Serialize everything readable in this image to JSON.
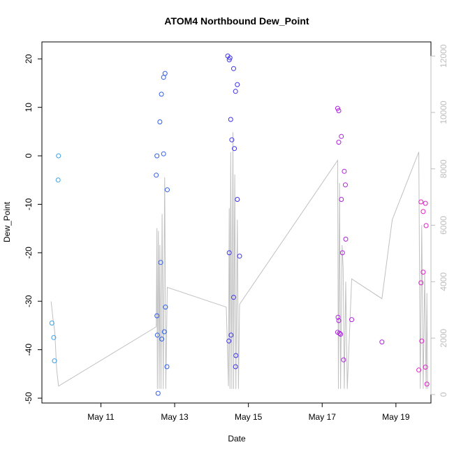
{
  "chart_data": {
    "type": "scatter",
    "title": "ATOM4 Northbound Dew_Point",
    "xlabel": "Date",
    "ylabel": "Dew_Point",
    "x_ticks": [
      "May 11",
      "May 13",
      "May 15",
      "May 17",
      "May 19"
    ],
    "x_tick_days": [
      11,
      13,
      15,
      17,
      19
    ],
    "xlim": [
      9.4,
      19.95
    ],
    "ylim": [
      -51,
      23.5
    ],
    "y_ticks": [
      -50,
      -40,
      -30,
      -20,
      -10,
      0,
      10,
      20
    ],
    "y_tick_labels": [
      "-50",
      "-40",
      "-30",
      "-20",
      "-10",
      "0",
      "10",
      "20"
    ],
    "y2lim": [
      -300,
      12500
    ],
    "y2_ticks": [
      0,
      2000,
      4000,
      6000,
      8000,
      10000,
      12000
    ],
    "y2_tick_labels": [
      "0",
      "2000",
      "4000",
      "6000",
      "8000",
      "10000",
      "12000"
    ],
    "grid": false,
    "colors": {
      "line": "#c0c0c0",
      "right_axis": "#bdbdbd",
      "axis": "#000000"
    },
    "point_groups": [
      {
        "color": "#3aa0e8",
        "points": [
          [
            9.67,
            -34.5
          ],
          [
            9.72,
            -37.5
          ],
          [
            9.74,
            -42.3
          ],
          [
            9.85,
            0
          ],
          [
            9.84,
            -5
          ]
        ]
      },
      {
        "color": "#2f5fe8",
        "points": [
          [
            12.5,
            -4
          ],
          [
            12.52,
            0
          ],
          [
            12.52,
            -33
          ],
          [
            12.53,
            -37
          ],
          [
            12.55,
            -49
          ],
          [
            12.6,
            7
          ],
          [
            12.62,
            -22
          ],
          [
            12.64,
            12.7
          ],
          [
            12.65,
            -37.8
          ],
          [
            12.7,
            0.4
          ],
          [
            12.7,
            16.2
          ],
          [
            12.72,
            -36.3
          ],
          [
            12.74,
            17
          ],
          [
            12.75,
            -31.2
          ],
          [
            12.8,
            -7
          ],
          [
            12.79,
            -43.5
          ]
        ]
      },
      {
        "color": "#3a30e8",
        "points": [
          [
            14.44,
            20.6
          ],
          [
            14.48,
            19.8
          ],
          [
            14.5,
            20.2
          ],
          [
            14.48,
            -20
          ],
          [
            14.47,
            -38.2
          ],
          [
            14.52,
            7.5
          ],
          [
            14.53,
            -37
          ],
          [
            14.55,
            3.3
          ],
          [
            14.6,
            18
          ],
          [
            14.6,
            -29.2
          ],
          [
            14.62,
            1.5
          ],
          [
            14.65,
            13.3
          ],
          [
            14.66,
            -41.2
          ],
          [
            14.65,
            -43.5
          ],
          [
            14.7,
            14.7
          ],
          [
            14.7,
            -9
          ],
          [
            14.76,
            -20.7
          ]
        ]
      },
      {
        "color": "#b020e0",
        "points": [
          [
            17.42,
            9.8
          ],
          [
            17.45,
            9.3
          ],
          [
            17.45,
            2.8
          ],
          [
            17.43,
            -33.3
          ],
          [
            17.45,
            -34
          ],
          [
            17.42,
            -36.4
          ],
          [
            17.47,
            -36.6
          ],
          [
            17.5,
            -36.8
          ],
          [
            17.52,
            4
          ],
          [
            17.52,
            -9
          ],
          [
            17.55,
            -20
          ],
          [
            17.58,
            -42.1
          ],
          [
            17.6,
            -3.2
          ],
          [
            17.63,
            -6
          ],
          [
            17.64,
            -17.2
          ],
          [
            17.8,
            -33.8
          ],
          [
            18.62,
            -38.4
          ]
        ]
      },
      {
        "color": "#e020c8",
        "points": [
          [
            19.62,
            -44.2
          ],
          [
            19.68,
            -9.5
          ],
          [
            19.68,
            -26.2
          ],
          [
            19.7,
            -38.2
          ],
          [
            19.74,
            -11.5
          ],
          [
            19.74,
            -24
          ],
          [
            19.8,
            -9.8
          ],
          [
            19.8,
            -43.6
          ],
          [
            19.82,
            -14.4
          ],
          [
            19.84,
            -47.1
          ]
        ]
      }
    ],
    "line_series": [
      [
        9.65,
        3300
      ],
      [
        9.7,
        2700
      ],
      [
        9.75,
        2200
      ],
      [
        9.8,
        900
      ],
      [
        9.85,
        300
      ],
      [
        12.5,
        2400
      ],
      [
        12.52,
        5900
      ],
      [
        12.53,
        200
      ],
      [
        12.56,
        5800
      ],
      [
        12.58,
        200
      ],
      [
        12.6,
        5300
      ],
      [
        12.63,
        200
      ],
      [
        12.66,
        6400
      ],
      [
        12.69,
        200
      ],
      [
        12.73,
        7700
      ],
      [
        12.76,
        200
      ],
      [
        12.8,
        3800
      ],
      [
        14.4,
        3100
      ],
      [
        14.46,
        300
      ],
      [
        14.48,
        6600
      ],
      [
        14.5,
        200
      ],
      [
        14.52,
        8600
      ],
      [
        14.55,
        200
      ],
      [
        14.58,
        9300
      ],
      [
        14.6,
        200
      ],
      [
        14.63,
        7800
      ],
      [
        14.66,
        200
      ],
      [
        14.7,
        6200
      ],
      [
        14.73,
        200
      ],
      [
        14.76,
        3200
      ],
      [
        17.42,
        8300
      ],
      [
        17.44,
        200
      ],
      [
        17.47,
        7500
      ],
      [
        17.5,
        200
      ],
      [
        17.54,
        5300
      ],
      [
        17.57,
        4500
      ],
      [
        17.6,
        200
      ],
      [
        17.64,
        4000
      ],
      [
        17.68,
        200
      ],
      [
        17.8,
        4100
      ],
      [
        18.62,
        3400
      ],
      [
        18.9,
        6200
      ],
      [
        19.62,
        8600
      ],
      [
        19.66,
        200
      ],
      [
        19.7,
        6000
      ],
      [
        19.74,
        200
      ],
      [
        19.78,
        4300
      ],
      [
        19.82,
        200
      ],
      [
        19.84,
        3600
      ],
      [
        19.86,
        200
      ]
    ]
  }
}
